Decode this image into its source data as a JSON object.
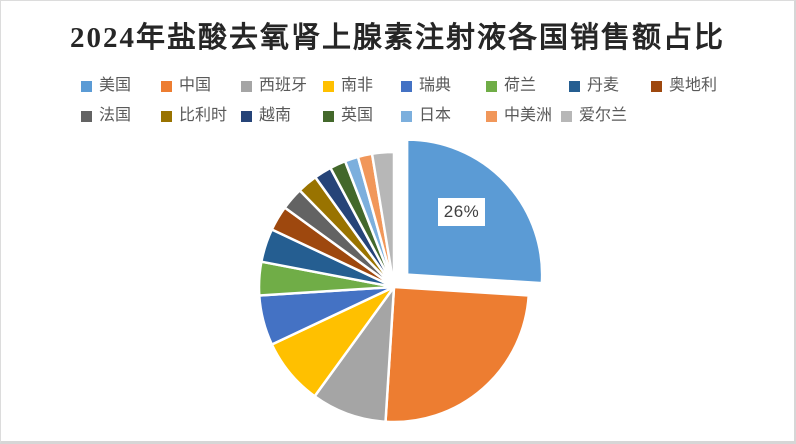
{
  "chart_data": {
    "type": "pie",
    "title": "2024年盐酸去氧肾上腺素注射液各国销售额占比",
    "legend_position": "top",
    "start_angle_deg": 0,
    "direction": "clockwise",
    "explode_first_slice": true,
    "grid": false,
    "data_label": {
      "slice": "美国",
      "text": "26%"
    },
    "series": [
      {
        "name": "美国",
        "value": 26,
        "color": "#5B9BD5"
      },
      {
        "name": "中国",
        "value": 25,
        "color": "#ED7D31"
      },
      {
        "name": "西班牙",
        "value": 9,
        "color": "#A5A5A5"
      },
      {
        "name": "南非",
        "value": 8,
        "color": "#FFC000"
      },
      {
        "name": "瑞典",
        "value": 6,
        "color": "#4472C4"
      },
      {
        "name": "荷兰",
        "value": 4,
        "color": "#70AD47"
      },
      {
        "name": "丹麦",
        "value": 4,
        "color": "#255E91"
      },
      {
        "name": "奥地利",
        "value": 3,
        "color": "#9E480E"
      },
      {
        "name": "法国",
        "value": 2.7,
        "color": "#636363"
      },
      {
        "name": "比利时",
        "value": 2.4,
        "color": "#997300"
      },
      {
        "name": "越南",
        "value": 2.1,
        "color": "#264478"
      },
      {
        "name": "英国",
        "value": 1.9,
        "color": "#43682B"
      },
      {
        "name": "日本",
        "value": 1.6,
        "color": "#7CAFDD"
      },
      {
        "name": "中美洲",
        "value": 1.7,
        "color": "#F1975A"
      },
      {
        "name": "爱尔兰",
        "value": 2.6,
        "color": "#B7B7B7"
      }
    ]
  },
  "style": {
    "slice_border_color": "#ffffff",
    "label_box_color": "#ffffff",
    "legend_text_color": "#595959",
    "title_color": "#262626"
  }
}
